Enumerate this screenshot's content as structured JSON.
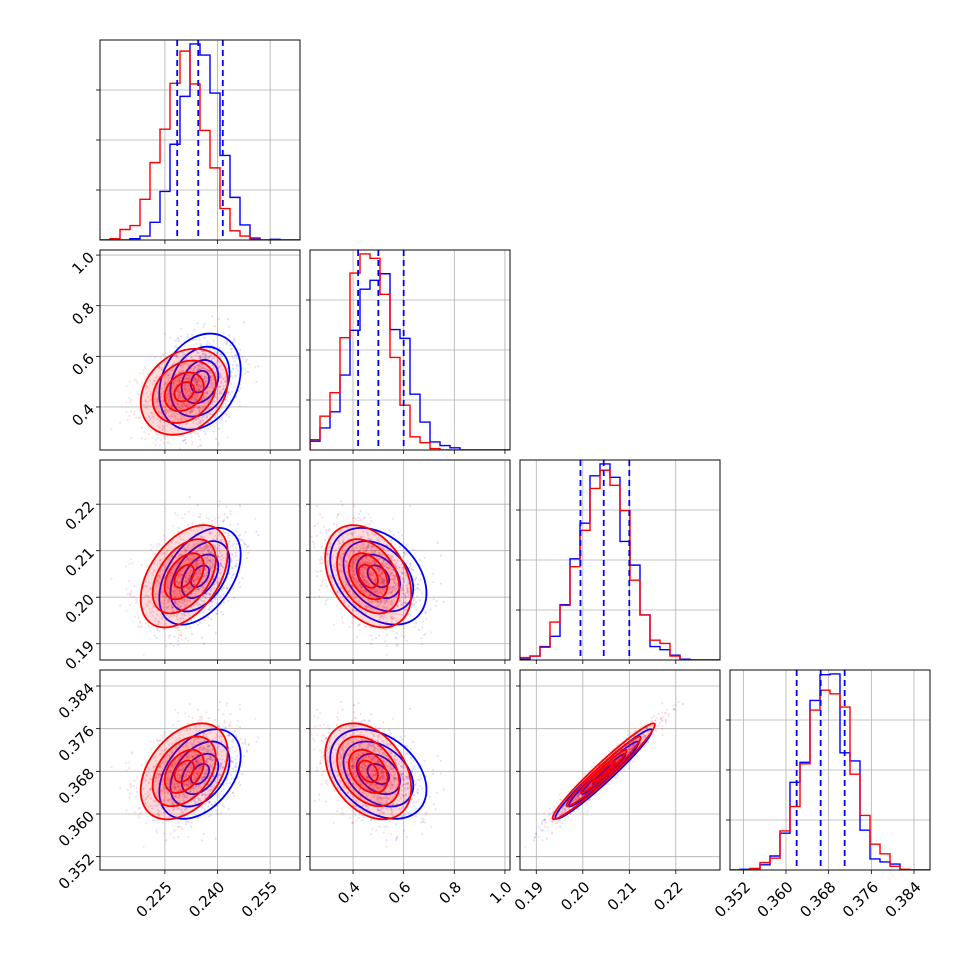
{
  "chart_data": {
    "type": "corner",
    "grid": true,
    "colors": {
      "red": "#ff0000",
      "blue": "#0000ff"
    },
    "series": [
      {
        "color": "#0000ff",
        "means": [
          0.235,
          0.5,
          0.2045,
          0.3675
        ],
        "sds": [
          0.0058,
          0.095,
          0.0052,
          0.0042
        ],
        "quantile_lines": [
          0.2285,
          0.2345,
          0.2415
        ]
      },
      {
        "color": "#ff0000",
        "means": [
          0.2305,
          0.46,
          0.2045,
          0.368
        ],
        "sds": [
          0.0062,
          0.085,
          0.0055,
          0.0045
        ]
      }
    ],
    "correlations": {
      "0-1": 0.25,
      "0-2": 0.45,
      "0-3": 0.4,
      "1-2": -0.35,
      "1-3": -0.35,
      "2-3": 0.97
    },
    "quantile_lines": [
      [
        0.2285,
        0.2345,
        0.2415
      ],
      [
        0.42,
        0.5,
        0.6
      ],
      [
        0.1995,
        0.2045,
        0.21
      ],
      [
        0.362,
        0.3665,
        0.371
      ]
    ],
    "axes": [
      {
        "range": [
          0.2065,
          0.2635
        ],
        "ticks": [
          0.225,
          0.24,
          0.255
        ],
        "tick_labels": [
          "0.225",
          "0.240",
          "0.255"
        ]
      },
      {
        "range": [
          0.23,
          1.02
        ],
        "ticks": [
          0.4,
          0.6,
          0.8,
          1.0
        ],
        "tick_labels": [
          "0.4",
          "0.6",
          "0.8",
          "1.0"
        ]
      },
      {
        "range": [
          0.1865,
          0.2295
        ],
        "ticks": [
          0.19,
          0.2,
          0.21,
          0.22
        ],
        "tick_labels": [
          "0.19",
          "0.20",
          "0.21",
          "0.22"
        ]
      },
      {
        "range": [
          0.3495,
          0.387
        ],
        "ticks": [
          0.352,
          0.36,
          0.368,
          0.376,
          0.384
        ],
        "tick_labels": [
          "0.352",
          "0.360",
          "0.368",
          "0.376",
          "0.384"
        ]
      }
    ]
  }
}
